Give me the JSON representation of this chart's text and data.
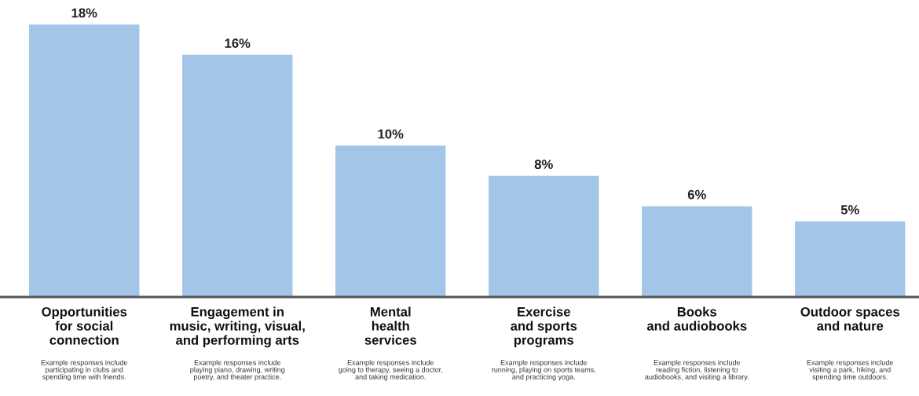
{
  "chart_data": {
    "type": "bar",
    "categories": [
      "Opportunities\nfor social\nconnection",
      "Engagement in\nmusic, writing, visual,\nand performing arts",
      "Mental\nhealth\nservices",
      "Exercise\nand sports\nprograms",
      "Books\nand audiobooks",
      "Outdoor spaces\nand nature"
    ],
    "values": [
      18,
      16,
      10,
      8,
      6,
      5
    ],
    "value_labels": [
      "18%",
      "16%",
      "10%",
      "8%",
      "6%",
      "5%"
    ],
    "color": "#a3c6e8",
    "grid": false,
    "legend": false,
    "tick_labels": "x",
    "annotations": [
      "Example responses include\nparticipating in clubs and\nspending time with friends.",
      "Example responses include\nplaying piano, drawing, writing\npoetry, and theater practice.",
      "Example responses include\ngoing to therapy, seeing a doctor,\nand taking medication.",
      "Example responses include\nrunning, playing on sports teams,\nand practicing yoga.",
      "Example responses include\nreading fiction, listening to\naudiobooks, and visiting a library.",
      "Example responses include\nvisiting a park, hiking, and\nspending time outdoors."
    ]
  }
}
